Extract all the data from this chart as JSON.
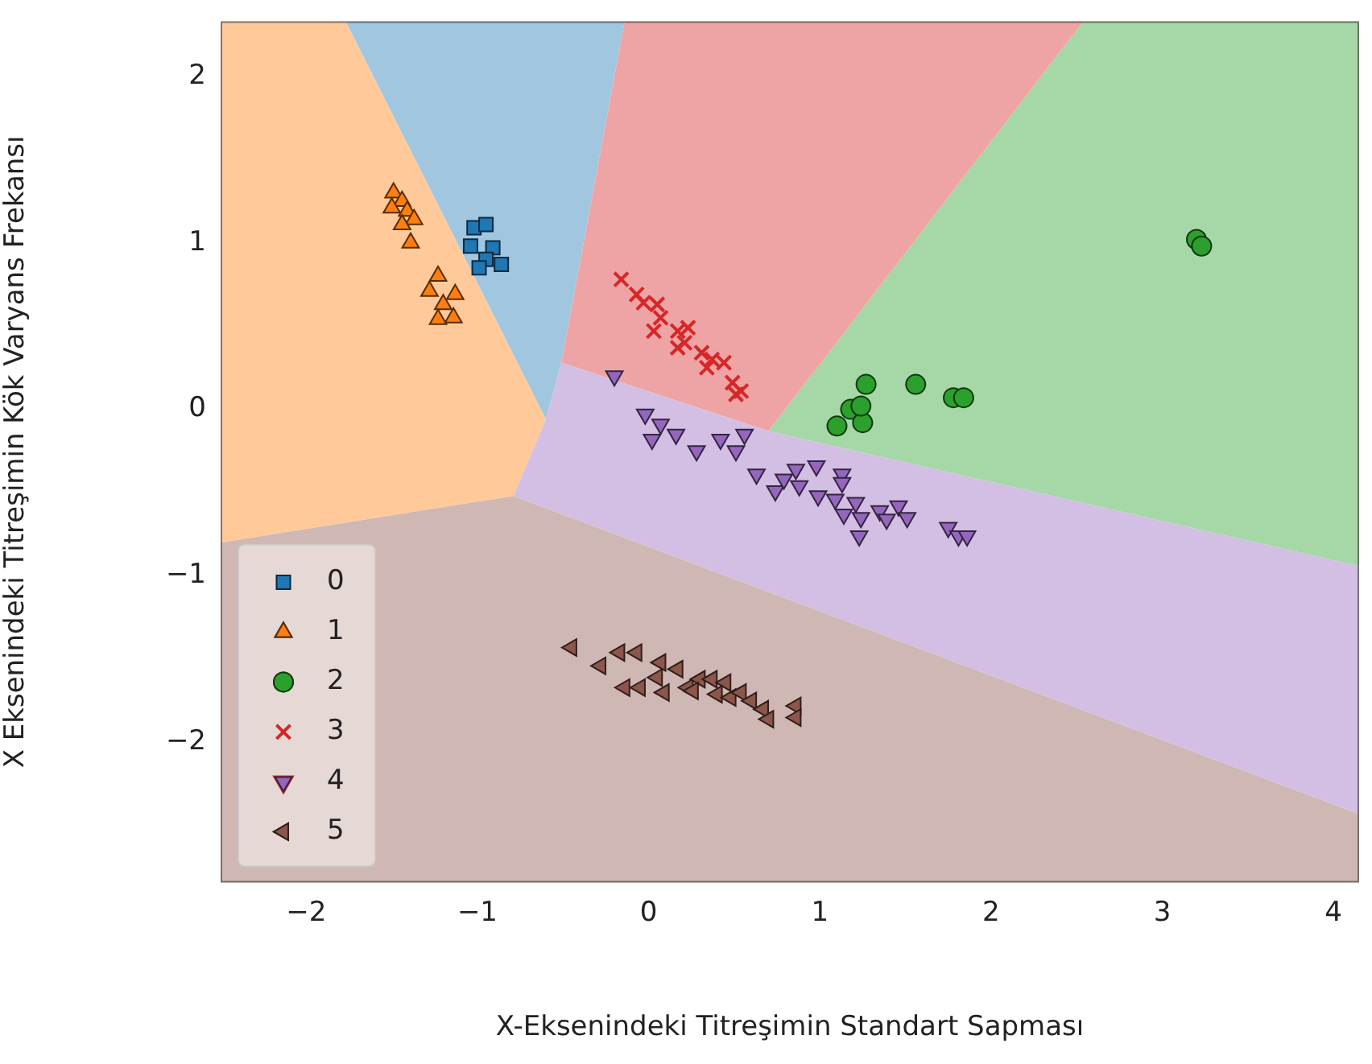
{
  "chart_data": {
    "type": "scatter",
    "xlabel": "X-Eksenindeki Titreşimin Standart Sapması",
    "ylabel": "X Eksenindeki Titreşimin Kök Varyans Frekansı",
    "xlim": [
      -2.5,
      4.15
    ],
    "ylim": [
      -2.84,
      2.33
    ],
    "xticks": [
      -2,
      -1,
      0,
      1,
      2,
      3,
      4
    ],
    "yticks": [
      -2,
      -1,
      0,
      1,
      2
    ],
    "grid": false,
    "legend": "bottom left",
    "series": [
      {
        "name": "0",
        "color": "#1f77b4",
        "marker": "square",
        "x": [
          -1.02,
          -0.95,
          -1.04,
          -0.91,
          -0.95,
          -0.86,
          -0.99
        ],
        "values": [
          1.09,
          1.11,
          0.98,
          0.97,
          0.9,
          0.87,
          0.85
        ]
      },
      {
        "name": "1",
        "color": "#ff7f0e",
        "marker": "triangle",
        "x": [
          -1.49,
          -1.44,
          -1.5,
          -1.41,
          -1.37,
          -1.44,
          -1.39,
          -1.23,
          -1.28,
          -1.13,
          -1.2,
          -1.14,
          -1.23
        ],
        "values": [
          1.3,
          1.25,
          1.21,
          1.19,
          1.14,
          1.11,
          1.0,
          0.8,
          0.71,
          0.69,
          0.63,
          0.55,
          0.54
        ]
      },
      {
        "name": "2",
        "color": "#2ca02c",
        "marker": "circle",
        "x": [
          1.1,
          1.18,
          1.25,
          1.24,
          1.27,
          1.56,
          1.78,
          1.84,
          3.2,
          3.23
        ],
        "values": [
          -0.1,
          0.0,
          -0.08,
          0.02,
          0.15,
          0.15,
          0.07,
          0.07,
          1.02,
          0.98
        ]
      },
      {
        "name": "3",
        "color": "#d62728",
        "marker": "cross",
        "x": [
          -0.16,
          -0.07,
          -0.03,
          0.05,
          0.07,
          0.03,
          0.17,
          0.21,
          0.17,
          0.23,
          0.31,
          0.37,
          0.34,
          0.44,
          0.49,
          0.54,
          0.51
        ],
        "values": [
          0.78,
          0.69,
          0.64,
          0.63,
          0.55,
          0.47,
          0.47,
          0.4,
          0.37,
          0.49,
          0.34,
          0.3,
          0.25,
          0.28,
          0.16,
          0.11,
          0.09
        ]
      },
      {
        "name": "4",
        "color": "#9467bd",
        "marker": "triangle_down",
        "x": [
          -0.2,
          -0.02,
          0.07,
          0.02,
          0.16,
          0.28,
          0.42,
          0.51,
          0.56,
          0.63,
          0.74,
          0.79,
          0.86,
          0.88,
          0.98,
          0.99,
          1.09,
          1.13,
          1.13,
          1.21,
          1.14,
          1.24,
          1.23,
          1.35,
          1.39,
          1.46,
          1.51,
          1.75,
          1.81,
          1.86
        ],
        "values": [
          0.2,
          -0.03,
          -0.09,
          -0.18,
          -0.15,
          -0.25,
          -0.18,
          -0.25,
          -0.15,
          -0.39,
          -0.49,
          -0.42,
          -0.36,
          -0.46,
          -0.34,
          -0.52,
          -0.54,
          -0.39,
          -0.44,
          -0.56,
          -0.63,
          -0.65,
          -0.76,
          -0.61,
          -0.66,
          -0.58,
          -0.65,
          -0.71,
          -0.76,
          -0.76
        ]
      },
      {
        "name": "5",
        "color": "#8c564b",
        "marker": "triangle_left",
        "x": [
          -0.45,
          -0.28,
          -0.17,
          -0.07,
          -0.14,
          -0.05,
          0.07,
          0.17,
          0.05,
          0.09,
          0.23,
          0.3,
          0.37,
          0.45,
          0.26,
          0.4,
          0.48,
          0.54,
          0.6,
          0.67,
          0.7,
          0.86,
          0.86
        ],
        "values": [
          -1.43,
          -1.54,
          -1.46,
          -1.46,
          -1.67,
          -1.67,
          -1.52,
          -1.56,
          -1.61,
          -1.7,
          -1.67,
          -1.62,
          -1.62,
          -1.64,
          -1.69,
          -1.71,
          -1.73,
          -1.7,
          -1.75,
          -1.8,
          -1.86,
          -1.78,
          -1.85
        ]
      }
    ]
  }
}
